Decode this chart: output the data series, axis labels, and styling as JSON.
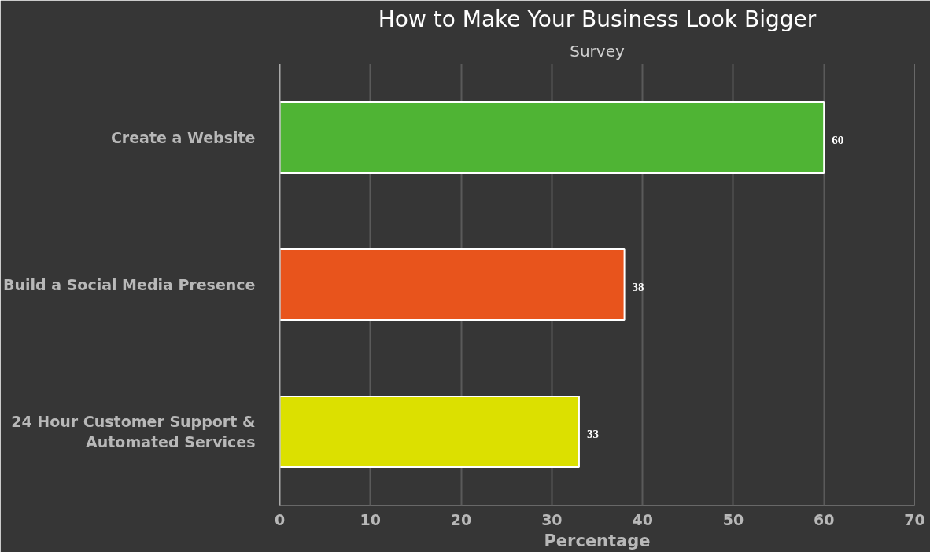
{
  "chart_data": {
    "type": "bar",
    "orientation": "horizontal",
    "title": "How to Make Your Business Look Bigger",
    "subtitle": "Survey",
    "categories": [
      "Create a Website",
      "Build a Social Media Presence",
      "24 Hour Customer Support & Automated Services"
    ],
    "values": [
      60,
      38,
      33
    ],
    "colors": [
      "#4fb434",
      "#e8541c",
      "#dce000"
    ],
    "xlabel": "Percentage",
    "xlim": [
      0,
      70
    ],
    "xticks": [
      0,
      10,
      20,
      30,
      40,
      50,
      60,
      70
    ],
    "grid": "x",
    "data_labels": true
  }
}
